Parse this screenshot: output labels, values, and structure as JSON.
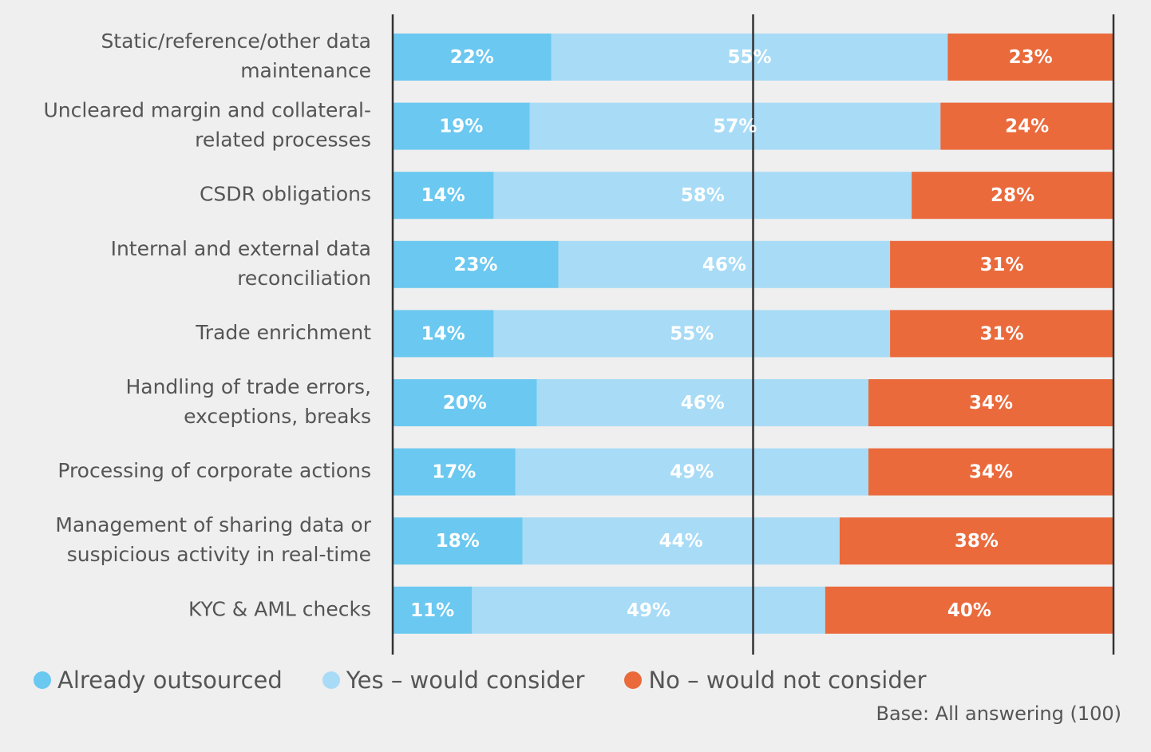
{
  "chart_data": {
    "type": "bar",
    "orientation": "horizontal",
    "stacked": true,
    "title": "",
    "xlabel": "",
    "ylabel": "",
    "xlim": [
      0,
      100
    ],
    "unit": "%",
    "grid": false,
    "legend_position": "bottom-left",
    "categories": [
      [
        "Static/reference/other data",
        "maintenance"
      ],
      [
        "Uncleared margin and collateral-",
        "related processes"
      ],
      [
        "CSDR obligations"
      ],
      [
        "Internal and external data",
        "reconciliation"
      ],
      [
        "Trade enrichment"
      ],
      [
        "Handling of trade errors,",
        "exceptions, breaks"
      ],
      [
        "Processing of corporate actions"
      ],
      [
        "Management of sharing data or",
        "suspicious activity in real-time"
      ],
      [
        "KYC & AML checks"
      ]
    ],
    "series": [
      {
        "name": "Already outsourced",
        "color": "#6bc8f0",
        "values": [
          22,
          19,
          14,
          23,
          14,
          20,
          17,
          18,
          11
        ]
      },
      {
        "name": "Yes – would consider",
        "color": "#a8dbf6",
        "values": [
          55,
          57,
          58,
          46,
          55,
          46,
          49,
          44,
          49
        ]
      },
      {
        "name": "No – would not consider",
        "color": "#ea6a3c",
        "values": [
          23,
          24,
          28,
          31,
          31,
          34,
          34,
          38,
          40
        ]
      }
    ],
    "axis_line_color": "#333333",
    "footnote": "Base: All answering (100)"
  }
}
